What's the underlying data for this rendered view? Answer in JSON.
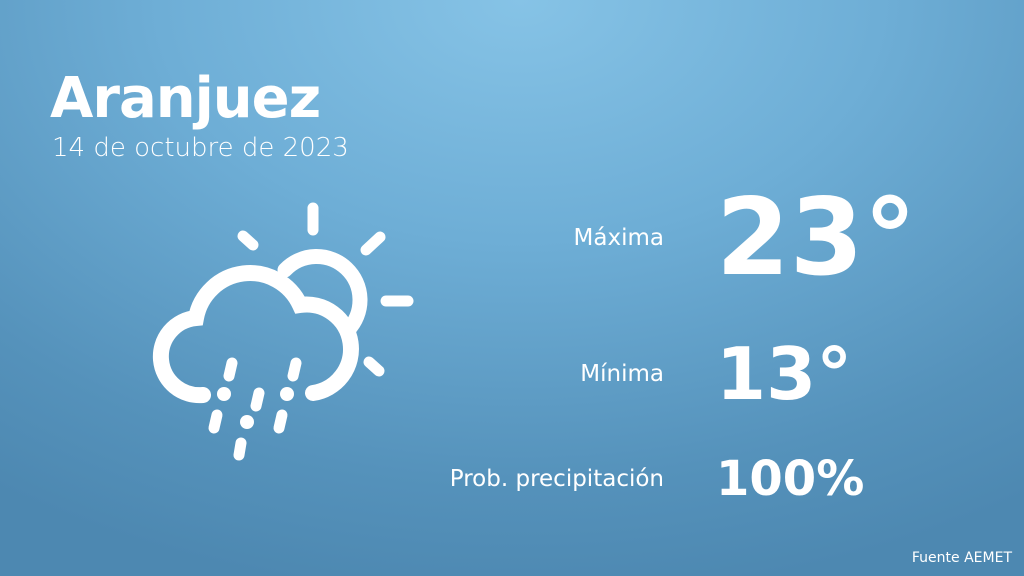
{
  "city": "Aranjuez",
  "date": "14 de octubre de 2023",
  "icon": "cloud-sun-rain-icon",
  "rows": [
    {
      "label": "Máxima",
      "value": "23°"
    },
    {
      "label": "Mínima",
      "value": "13°"
    },
    {
      "label": "Prob. precipitación",
      "value": "100%"
    }
  ],
  "source": "Fuente AEMET"
}
